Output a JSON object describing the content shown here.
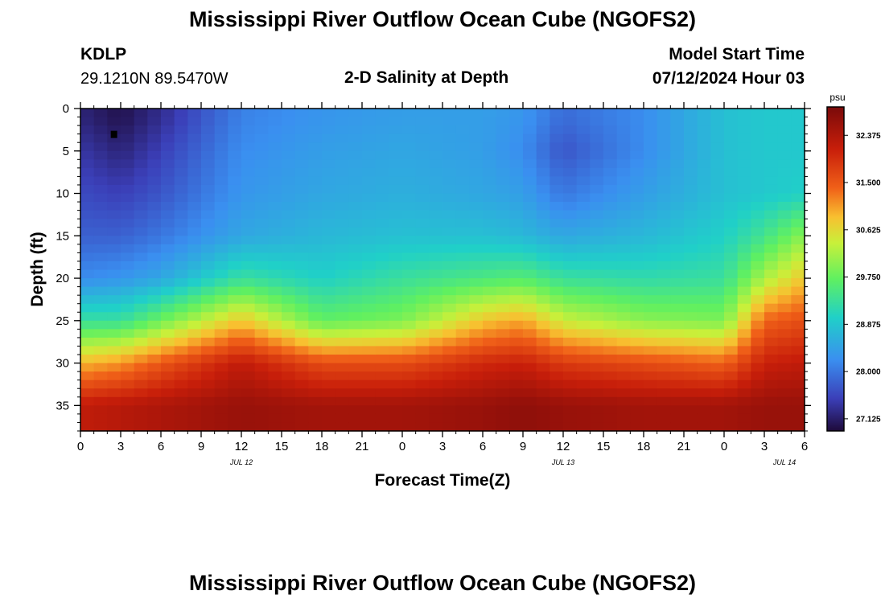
{
  "page": {
    "title_top": "Mississippi River Outflow Ocean Cube (NGOFS2)",
    "title_bottom": "Mississippi River Outflow Ocean Cube (NGOFS2)",
    "station": "KDLP",
    "coords": "29.1210N  89.5470W",
    "subtitle": "2-D Salinity at Depth",
    "model_label": "Model Start Time",
    "model_time": "07/12/2024 Hour 03"
  },
  "chart_data": {
    "type": "heatmap",
    "title": "2-D Salinity at Depth",
    "xlabel": "Forecast Time(Z)",
    "ylabel": "Depth (ft)",
    "x_range_hours": [
      0,
      54
    ],
    "x_ticks": [
      {
        "h": 0,
        "label": "0"
      },
      {
        "h": 3,
        "label": "3"
      },
      {
        "h": 6,
        "label": "6"
      },
      {
        "h": 9,
        "label": "9"
      },
      {
        "h": 12,
        "label": "12"
      },
      {
        "h": 15,
        "label": "15"
      },
      {
        "h": 18,
        "label": "18"
      },
      {
        "h": 21,
        "label": "21"
      },
      {
        "h": 24,
        "label": "0"
      },
      {
        "h": 27,
        "label": "3"
      },
      {
        "h": 30,
        "label": "6"
      },
      {
        "h": 33,
        "label": "9"
      },
      {
        "h": 36,
        "label": "12"
      },
      {
        "h": 39,
        "label": "15"
      },
      {
        "h": 42,
        "label": "18"
      },
      {
        "h": 45,
        "label": "21"
      },
      {
        "h": 48,
        "label": "0"
      },
      {
        "h": 51,
        "label": "3"
      },
      {
        "h": 54,
        "label": "6"
      }
    ],
    "date_labels": [
      {
        "h": 12,
        "label": "JUL 12"
      },
      {
        "h": 36,
        "label": "JUL 13"
      },
      {
        "h": 52.5,
        "label": "JUL 14"
      }
    ],
    "y_range_ft": [
      0,
      38
    ],
    "y_ticks": [
      0,
      5,
      10,
      15,
      20,
      25,
      30,
      35
    ],
    "colorbar": {
      "unit": "psu",
      "min": 26.9,
      "max": 32.9,
      "ticks": [
        "27.125",
        "28.000",
        "28.875",
        "29.750",
        "30.625",
        "31.500",
        "32.375"
      ]
    },
    "marker": {
      "h": 2.5,
      "depth_ft": 3
    },
    "grid": {
      "time_step_hours": 1,
      "depth_step_ft": 1
    },
    "salinity_psu_sampled": {
      "depth_ft": [
        1,
        5,
        10,
        15,
        20,
        25,
        30,
        35
      ],
      "hours": [
        0,
        3,
        6,
        12,
        18,
        24,
        30,
        33,
        36,
        42,
        48,
        51,
        54
      ],
      "rows": [
        [
          27.2,
          27.0,
          27.3,
          28.1,
          28.3,
          28.4,
          28.4,
          28.3,
          27.9,
          28.2,
          28.8,
          28.9,
          28.9
        ],
        [
          27.4,
          27.2,
          27.5,
          28.2,
          28.4,
          28.5,
          28.4,
          28.2,
          27.7,
          28.2,
          28.8,
          28.9,
          28.9
        ],
        [
          27.6,
          27.5,
          27.7,
          28.3,
          28.5,
          28.6,
          28.5,
          28.4,
          28.0,
          28.4,
          28.8,
          28.9,
          29.0
        ],
        [
          27.8,
          27.8,
          28.0,
          28.5,
          28.7,
          28.8,
          28.8,
          28.7,
          28.5,
          28.7,
          29.0,
          29.4,
          30.0
        ],
        [
          28.2,
          28.3,
          28.5,
          29.3,
          29.0,
          29.3,
          29.5,
          29.6,
          29.3,
          29.2,
          29.3,
          30.2,
          30.8
        ],
        [
          29.3,
          29.3,
          29.8,
          30.8,
          29.7,
          29.9,
          30.8,
          31.0,
          30.4,
          30.0,
          29.9,
          31.4,
          31.6
        ],
        [
          30.9,
          31.1,
          31.5,
          32.2,
          31.6,
          31.6,
          32.0,
          32.1,
          31.8,
          31.6,
          31.4,
          32.1,
          32.2
        ],
        [
          32.2,
          32.3,
          32.4,
          32.6,
          32.5,
          32.5,
          32.6,
          32.7,
          32.6,
          32.5,
          32.5,
          32.6,
          32.6
        ]
      ]
    }
  }
}
